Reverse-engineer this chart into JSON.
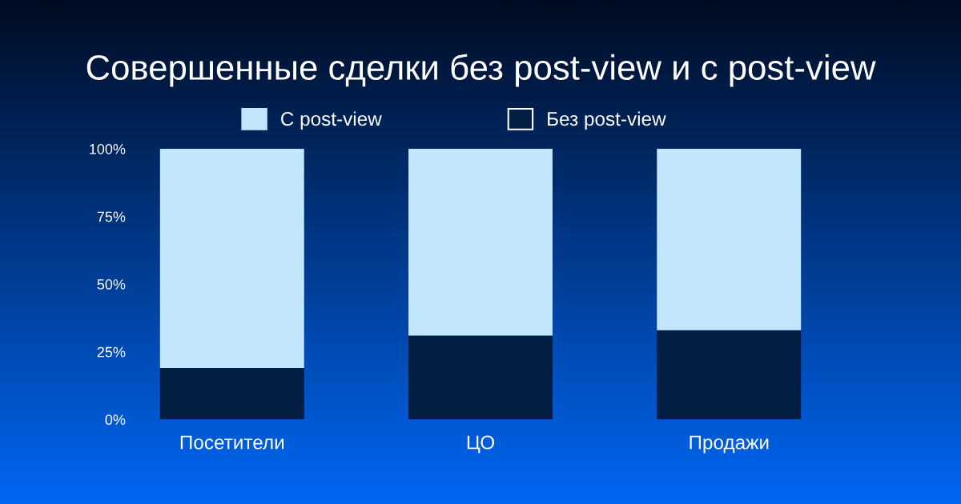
{
  "chart_data": {
    "type": "bar",
    "title": "Совершенные сделки без post-view и с post-view",
    "categories": [
      "Посетители",
      "ЦО",
      "Продажи"
    ],
    "stacked": true,
    "series": [
      {
        "name": "Без post-view",
        "color": "#021e43",
        "values": [
          19,
          31,
          33
        ]
      },
      {
        "name": "С post-view",
        "color": "#c2e6fb",
        "values": [
          81,
          69,
          67
        ]
      }
    ],
    "ylim": [
      0,
      100
    ],
    "yticks": [
      {
        "value": 0,
        "label": "0%"
      },
      {
        "value": 25,
        "label": "25%"
      },
      {
        "value": 50,
        "label": "50%"
      },
      {
        "value": 75,
        "label": "75%"
      },
      {
        "value": 100,
        "label": "100%"
      }
    ],
    "legend": "top",
    "grid": false
  }
}
